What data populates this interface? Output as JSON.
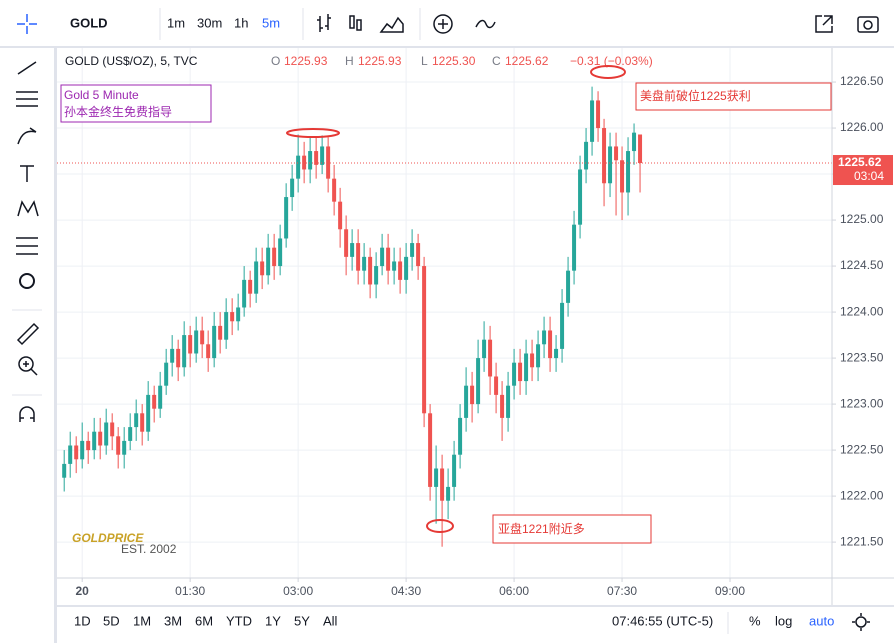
{
  "toolbar": {
    "symbol": "GOLD",
    "intervals": [
      "1m",
      "30m",
      "1h",
      "5m"
    ],
    "active_interval": 3
  },
  "bottom_bar": {
    "ranges": [
      "1D",
      "5D",
      "1M",
      "3M",
      "6M",
      "YTD",
      "1Y",
      "5Y",
      "All"
    ],
    "time": "07:46:55 (UTC-5)",
    "options": [
      "%",
      "log",
      "auto"
    ]
  },
  "chart_data": {
    "type": "candlestick",
    "title": "GOLD (US$/OZ), 5, TVC",
    "ohlc_labels": [
      "O",
      "H",
      "L",
      "C"
    ],
    "legend": {
      "open": "1225.93",
      "high": "1225.93",
      "low": "1225.30",
      "close": "1225.62"
    },
    "change": "−0.31 (−0.03%)",
    "last_price_label": "1225.62",
    "countdown": "03:04",
    "annotations": [
      "Gold 5 Minute",
      "孙本金终生免费指导",
      "美盘前破位1225获利",
      "亚盘1221附近多"
    ],
    "watermark": [
      "GOLDPRICE",
      "EST. 2002"
    ],
    "up_color": "#26a69a",
    "down_color": "#ef5350",
    "grid": true,
    "xlim": [
      -21,
      625
    ],
    "ylim": [
      1221.11,
      1226.87
    ],
    "xticks": [
      {
        "value": 0,
        "label": "20"
      },
      {
        "value": 90,
        "label": "01:30"
      },
      {
        "value": 180,
        "label": "03:00"
      },
      {
        "value": 270,
        "label": "04:30"
      },
      {
        "value": 360,
        "label": "06:00"
      },
      {
        "value": 450,
        "label": "07:30"
      },
      {
        "value": 540,
        "label": "09:00"
      }
    ],
    "yticks": [
      {
        "value": 1221.5,
        "label": "1221.50"
      },
      {
        "value": 1222,
        "label": "1222.00"
      },
      {
        "value": 1222.5,
        "label": "1222.50"
      },
      {
        "value": 1223,
        "label": "1223.00"
      },
      {
        "value": 1223.5,
        "label": "1223.50"
      },
      {
        "value": 1224,
        "label": "1224.00"
      },
      {
        "value": 1224.5,
        "label": "1224.50"
      },
      {
        "value": 1225,
        "label": "1225.00"
      },
      {
        "value": 1225.5,
        "label": "1225.50"
      },
      {
        "value": 1226,
        "label": "1226.00"
      },
      {
        "value": 1226.5,
        "label": "1226.50"
      }
    ],
    "x": [
      -15,
      -10,
      -5,
      0,
      5,
      10,
      15,
      20,
      25,
      30,
      35,
      40,
      45,
      50,
      55,
      60,
      65,
      70,
      75,
      80,
      85,
      90,
      95,
      100,
      105,
      110,
      115,
      120,
      125,
      130,
      135,
      140,
      145,
      150,
      155,
      160,
      165,
      170,
      175,
      180,
      185,
      190,
      195,
      200,
      205,
      210,
      215,
      220,
      225,
      230,
      235,
      240,
      245,
      250,
      255,
      260,
      265,
      270,
      275,
      280,
      285,
      290,
      295,
      300,
      305,
      310,
      315,
      320,
      325,
      330,
      335,
      340,
      345,
      350,
      355,
      360,
      365,
      370,
      375,
      380,
      385,
      390,
      395,
      400,
      405,
      410,
      415,
      420,
      425,
      430,
      435,
      440,
      445,
      450,
      455,
      460,
      465
    ],
    "open": [
      1222.2,
      1222.35,
      1222.55,
      1222.4,
      1222.6,
      1222.5,
      1222.7,
      1222.55,
      1222.8,
      1222.65,
      1222.45,
      1222.6,
      1222.75,
      1222.9,
      1222.7,
      1223.1,
      1222.95,
      1223.2,
      1223.45,
      1223.6,
      1223.4,
      1223.75,
      1223.55,
      1223.8,
      1223.65,
      1223.5,
      1223.85,
      1223.7,
      1224.0,
      1223.9,
      1224.05,
      1224.35,
      1224.2,
      1224.55,
      1224.4,
      1224.7,
      1224.5,
      1224.8,
      1225.25,
      1225.45,
      1225.7,
      1225.55,
      1225.75,
      1225.6,
      1225.8,
      1225.45,
      1225.2,
      1224.9,
      1224.6,
      1224.75,
      1224.45,
      1224.6,
      1224.3,
      1224.5,
      1224.7,
      1224.45,
      1224.55,
      1224.35,
      1224.6,
      1224.75,
      1224.5,
      1222.9,
      1222.1,
      1222.3,
      1221.95,
      1222.1,
      1222.45,
      1222.85,
      1223.2,
      1223.0,
      1223.5,
      1223.7,
      1223.3,
      1223.1,
      1222.85,
      1223.2,
      1223.45,
      1223.25,
      1223.55,
      1223.4,
      1223.65,
      1223.8,
      1223.5,
      1223.6,
      1224.1,
      1224.45,
      1224.95,
      1225.55,
      1225.85,
      1226.3,
      1226.0,
      1225.4,
      1225.8,
      1225.65,
      1225.3,
      1225.75,
      1225.93
    ],
    "high": [
      1222.5,
      1222.7,
      1222.65,
      1222.8,
      1222.7,
      1222.85,
      1222.85,
      1222.95,
      1222.9,
      1222.75,
      1222.75,
      1222.9,
      1223.05,
      1223.0,
      1223.25,
      1223.2,
      1223.35,
      1223.6,
      1223.75,
      1223.7,
      1223.9,
      1223.85,
      1223.95,
      1223.95,
      1223.8,
      1224.0,
      1224.0,
      1224.15,
      1224.15,
      1224.2,
      1224.5,
      1224.45,
      1224.7,
      1224.7,
      1224.85,
      1224.85,
      1224.95,
      1225.4,
      1225.6,
      1225.93,
      1225.85,
      1225.9,
      1225.9,
      1225.92,
      1225.9,
      1225.6,
      1225.35,
      1225.05,
      1224.9,
      1224.9,
      1224.75,
      1224.7,
      1224.65,
      1224.85,
      1224.85,
      1224.7,
      1224.7,
      1224.75,
      1224.9,
      1224.85,
      1224.6,
      1223.0,
      1222.55,
      1222.45,
      1222.3,
      1222.6,
      1223.0,
      1223.4,
      1223.35,
      1223.7,
      1223.9,
      1223.85,
      1223.45,
      1223.25,
      1223.35,
      1223.6,
      1223.6,
      1223.7,
      1223.7,
      1223.8,
      1223.95,
      1223.95,
      1223.75,
      1224.25,
      1224.6,
      1225.1,
      1225.7,
      1226.0,
      1226.45,
      1226.4,
      1226.1,
      1225.95,
      1225.95,
      1225.8,
      1225.9,
      1226.05,
      1225.93
    ],
    "low": [
      1222.05,
      1222.2,
      1222.25,
      1222.3,
      1222.35,
      1222.4,
      1222.4,
      1222.45,
      1222.5,
      1222.3,
      1222.3,
      1222.5,
      1222.6,
      1222.55,
      1222.6,
      1222.8,
      1222.85,
      1223.1,
      1223.3,
      1223.25,
      1223.3,
      1223.4,
      1223.45,
      1223.5,
      1223.35,
      1223.4,
      1223.55,
      1223.6,
      1223.75,
      1223.8,
      1223.95,
      1224.05,
      1224.1,
      1224.25,
      1224.3,
      1224.35,
      1224.4,
      1224.7,
      1225.1,
      1225.3,
      1225.4,
      1225.4,
      1225.45,
      1225.5,
      1225.3,
      1225.05,
      1224.7,
      1224.4,
      1224.45,
      1224.3,
      1224.3,
      1224.15,
      1224.15,
      1224.4,
      1224.3,
      1224.3,
      1224.2,
      1224.2,
      1224.45,
      1224.35,
      1222.75,
      1221.95,
      1221.7,
      1221.45,
      1221.75,
      1221.95,
      1222.3,
      1222.7,
      1222.8,
      1222.9,
      1223.35,
      1223.1,
      1222.9,
      1222.6,
      1222.7,
      1223.05,
      1223.1,
      1223.1,
      1223.25,
      1223.25,
      1223.5,
      1223.35,
      1223.35,
      1223.45,
      1223.95,
      1224.3,
      1224.8,
      1225.4,
      1225.7,
      1225.85,
      1225.15,
      1225.25,
      1225.05,
      1225.0,
      1225.05,
      1225.6,
      1225.3
    ],
    "close": [
      1222.35,
      1222.55,
      1222.4,
      1222.6,
      1222.5,
      1222.7,
      1222.55,
      1222.8,
      1222.65,
      1222.45,
      1222.6,
      1222.75,
      1222.9,
      1222.7,
      1223.1,
      1222.95,
      1223.2,
      1223.45,
      1223.6,
      1223.4,
      1223.75,
      1223.55,
      1223.8,
      1223.65,
      1223.5,
      1223.85,
      1223.7,
      1224.0,
      1223.9,
      1224.05,
      1224.35,
      1224.2,
      1224.55,
      1224.4,
      1224.7,
      1224.5,
      1224.8,
      1225.25,
      1225.45,
      1225.7,
      1225.55,
      1225.75,
      1225.6,
      1225.8,
      1225.45,
      1225.2,
      1224.9,
      1224.6,
      1224.75,
      1224.45,
      1224.6,
      1224.3,
      1224.5,
      1224.7,
      1224.45,
      1224.55,
      1224.35,
      1224.6,
      1224.75,
      1224.5,
      1222.9,
      1222.1,
      1222.3,
      1221.95,
      1222.1,
      1222.45,
      1222.85,
      1223.2,
      1223.0,
      1223.5,
      1223.7,
      1223.3,
      1223.1,
      1222.85,
      1223.2,
      1223.45,
      1223.25,
      1223.55,
      1223.4,
      1223.65,
      1223.8,
      1223.5,
      1223.6,
      1224.1,
      1224.45,
      1224.95,
      1225.55,
      1225.85,
      1226.3,
      1226.0,
      1225.4,
      1225.8,
      1225.65,
      1225.3,
      1225.75,
      1225.95,
      1225.62
    ]
  }
}
